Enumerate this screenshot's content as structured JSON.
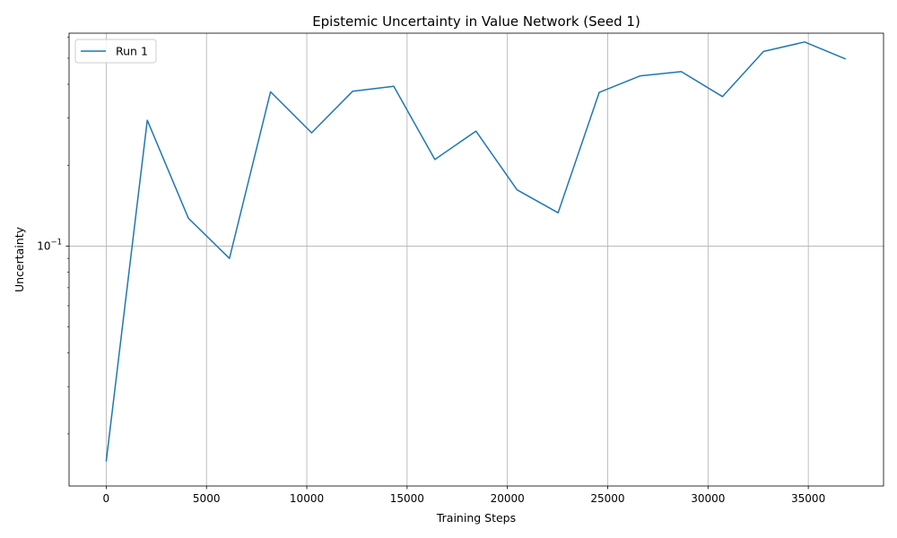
{
  "chart_data": {
    "type": "line",
    "title": "Epistemic Uncertainty in Value Network (Seed 1)",
    "xlabel": "Training Steps",
    "ylabel": "Uncertainty",
    "xlim": [
      -1850,
      38750
    ],
    "ylim": [
      0.0128,
      0.62
    ],
    "yscale": "log",
    "x_ticks": [
      0,
      5000,
      10000,
      15000,
      20000,
      25000,
      30000,
      35000
    ],
    "x_tick_labels": [
      "0",
      "5000",
      "10000",
      "15000",
      "20000",
      "25000",
      "30000",
      "35000"
    ],
    "y_major_ticks": [
      {
        "value": 0.1,
        "base": "10",
        "exponent": "−1"
      }
    ],
    "grid": true,
    "legend_position": "top-left",
    "series": [
      {
        "name": "Run 1",
        "color": "#1f77b4",
        "x": [
          0,
          2048,
          4096,
          6144,
          8192,
          10240,
          12288,
          14336,
          16384,
          18432,
          20480,
          22528,
          24576,
          26624,
          28672,
          30720,
          32768,
          34816,
          36864
        ],
        "y": [
          0.0158,
          0.294,
          0.127,
          0.09,
          0.375,
          0.264,
          0.377,
          0.393,
          0.21,
          0.268,
          0.162,
          0.133,
          0.373,
          0.43,
          0.446,
          0.36,
          0.53,
          0.575,
          0.497
        ]
      }
    ]
  }
}
